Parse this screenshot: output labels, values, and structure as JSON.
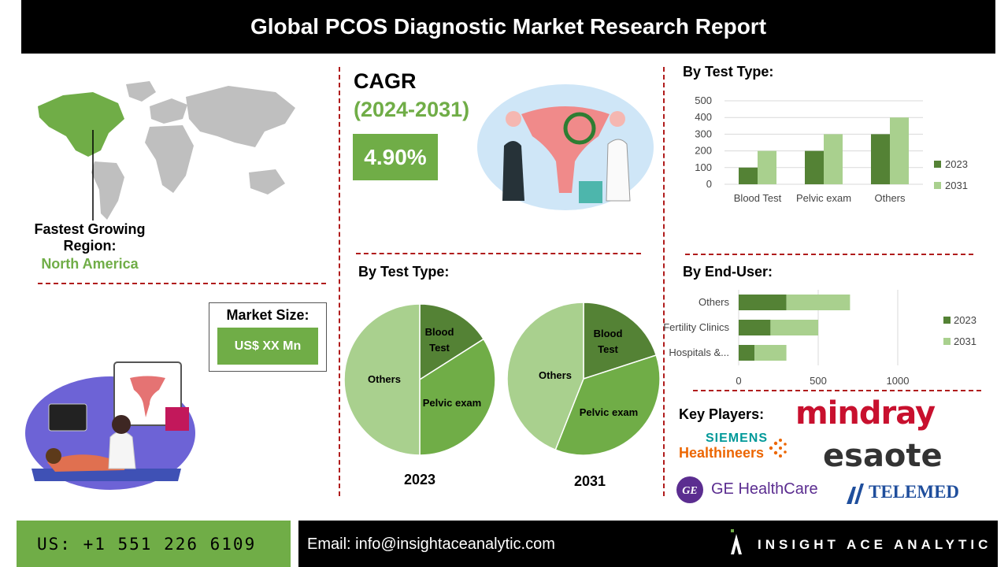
{
  "header": {
    "title": "Global PCOS Diagnostic Market Research Report"
  },
  "region": {
    "label": "Fastest Growing Region:",
    "value": "North America"
  },
  "cagr": {
    "label": "CAGR",
    "years": "(2024-2031)",
    "value": "4.90%"
  },
  "market_size": {
    "label": "Market Size:",
    "value": "US$ XX Mn"
  },
  "sections": {
    "test_type_bar": "By Test Type:",
    "test_type_pie": "By Test Type:",
    "end_user": "By End-User:",
    "key_players": "Key Players:"
  },
  "key_players": [
    "mindray",
    "SIEMENS",
    "Healthineers",
    "esaote",
    "GE HealthCare",
    "TELEMED"
  ],
  "footer": {
    "phone": "US: +1 551 226 6109",
    "email": "Email: info@insightaceanalytic.com",
    "brand": "INSIGHT ACE ANALYTIC"
  },
  "colors": {
    "series_2023": "#548235",
    "series_2031": "#a9d08e",
    "accent": "#70ad47",
    "divider": "#b01c1c"
  },
  "chart_data": [
    {
      "type": "bar",
      "title": "By Test Type:",
      "categories": [
        "Blood Test",
        "Pelvic exam",
        "Others"
      ],
      "series": [
        {
          "name": "2023",
          "values": [
            100,
            200,
            300
          ]
        },
        {
          "name": "2031",
          "values": [
            200,
            300,
            400
          ]
        }
      ],
      "ylim": [
        0,
        500
      ],
      "yticks": [
        "0",
        "100",
        "200",
        "300",
        "400",
        "500"
      ],
      "grid": true,
      "legend": "right"
    },
    {
      "type": "pie",
      "title": "2023",
      "labels": [
        "Blood Test",
        "Pelvic exam",
        "Others"
      ],
      "values": [
        16,
        34,
        50
      ]
    },
    {
      "type": "pie",
      "title": "2031",
      "labels": [
        "Blood Test",
        "Pelvic exam",
        "Others"
      ],
      "values": [
        20,
        36,
        44
      ]
    },
    {
      "type": "bar",
      "orientation": "horizontal",
      "stacked": true,
      "title": "By End-User:",
      "categories": [
        "Others",
        "Fertility Clinics",
        "Hospitals &..."
      ],
      "series": [
        {
          "name": "2023",
          "values": [
            300,
            200,
            100
          ]
        },
        {
          "name": "2031",
          "values": [
            400,
            300,
            200
          ]
        }
      ],
      "xlim": [
        0,
        1000
      ],
      "xticks": [
        "0",
        "500",
        "1000"
      ],
      "grid": true,
      "legend": "right"
    }
  ]
}
